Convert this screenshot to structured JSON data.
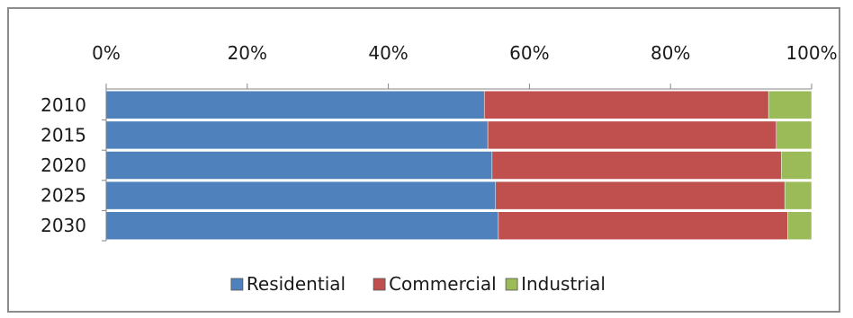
{
  "chart_data": {
    "type": "bar",
    "orientation": "horizontal",
    "stacked": "percent",
    "title": "",
    "xlabel": "",
    "ylabel": "",
    "categories": [
      "2010",
      "2015",
      "2020",
      "2025",
      "2030"
    ],
    "xlim": [
      0,
      100
    ],
    "xticks": [
      "0%",
      "20%",
      "40%",
      "60%",
      "80%",
      "100%"
    ],
    "series": [
      {
        "name": "Residential",
        "color": "#4f81bd",
        "values": [
          53.6,
          54.1,
          54.7,
          55.2,
          55.6
        ]
      },
      {
        "name": "Commercial",
        "color": "#c0504d",
        "values": [
          40.3,
          40.9,
          41.0,
          41.0,
          41.0
        ]
      },
      {
        "name": "Industrial",
        "color": "#9bbb59",
        "values": [
          6.1,
          5.0,
          4.3,
          3.8,
          3.4
        ]
      }
    ],
    "grid": false,
    "legend": "bottom",
    "x_axis_position": "top"
  }
}
